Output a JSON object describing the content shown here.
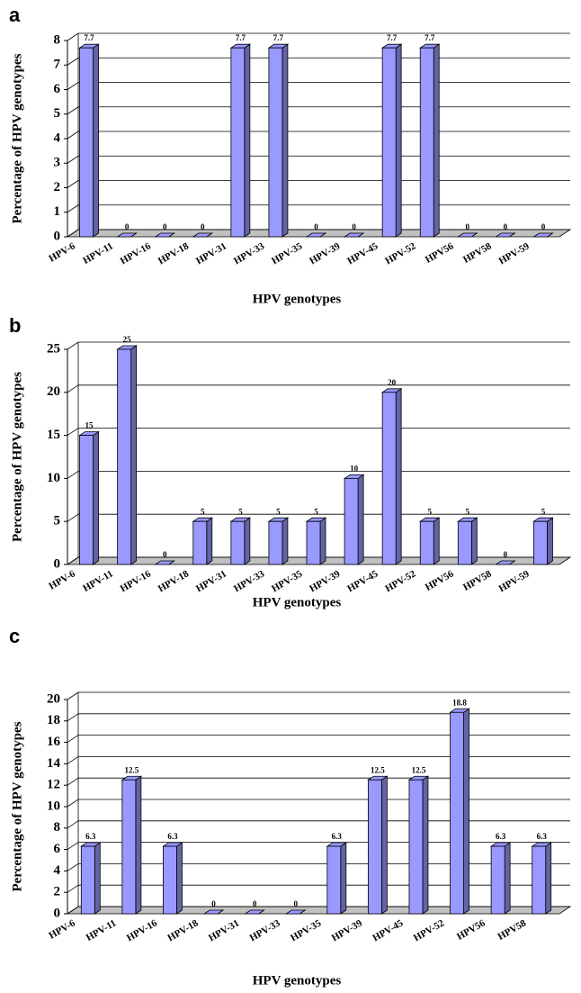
{
  "chart_data": [
    {
      "type": "bar",
      "label": "a",
      "x_label": "HPV genotypes",
      "y_label": "Percentage of HPV genotypes",
      "categories": [
        "HPV-6",
        "HPV-11",
        "HPV-16",
        "HPV-18",
        "HPV-31",
        "HPV-33",
        "HPV-35",
        "HPV-39",
        "HPV-45",
        "HPV-52",
        "HPV56",
        "HPV58",
        "HPV-59"
      ],
      "values": [
        7.7,
        0,
        0,
        0,
        7.7,
        7.7,
        0,
        0,
        7.7,
        7.7,
        0,
        0,
        0
      ],
      "color": "#9999ff",
      "ylim": [
        0,
        8
      ],
      "yticks": [
        0,
        1,
        2,
        3,
        4,
        5,
        6,
        7,
        8
      ],
      "grid": true
    },
    {
      "type": "bar",
      "label": "b",
      "x_label": "HPV genotypes",
      "y_label": "Percentage of HPV genotypes",
      "categories": [
        "HPV-6",
        "HPV-11",
        "HPV-16",
        "HPV-18",
        "HPV-31",
        "HPV-33",
        "HPV-35",
        "HPV-39",
        "HPV-45",
        "HPV-52",
        "HPV56",
        "HPV58",
        "HPV-59"
      ],
      "values": [
        15,
        25,
        0,
        5,
        5,
        5,
        5,
        10,
        20,
        5,
        5,
        0,
        5
      ],
      "color": "#9999ff",
      "ylim": [
        0,
        25
      ],
      "yticks": [
        0,
        5,
        10,
        15,
        20,
        25
      ],
      "grid": true
    },
    {
      "type": "bar",
      "label": "c",
      "x_label": "HPV genotypes",
      "y_label": "Percentage of HPV genotypes",
      "categories": [
        "HPV-6",
        "HPV-11",
        "HPV-16",
        "HPV-18",
        "HPV-31",
        "HPV-33",
        "HPV-35",
        "HPV-39",
        "HPV-45",
        "HPV-52",
        "HPV56",
        "HPV58"
      ],
      "values": [
        6.3,
        12.5,
        6.3,
        0,
        0,
        0,
        6.3,
        12.5,
        12.5,
        18.8,
        6.3,
        6.3
      ],
      "color": "#9999ff",
      "ylim": [
        0,
        20
      ],
      "yticks": [
        0,
        2,
        4,
        6,
        8,
        10,
        12,
        14,
        16,
        18,
        20
      ],
      "grid": true
    }
  ]
}
